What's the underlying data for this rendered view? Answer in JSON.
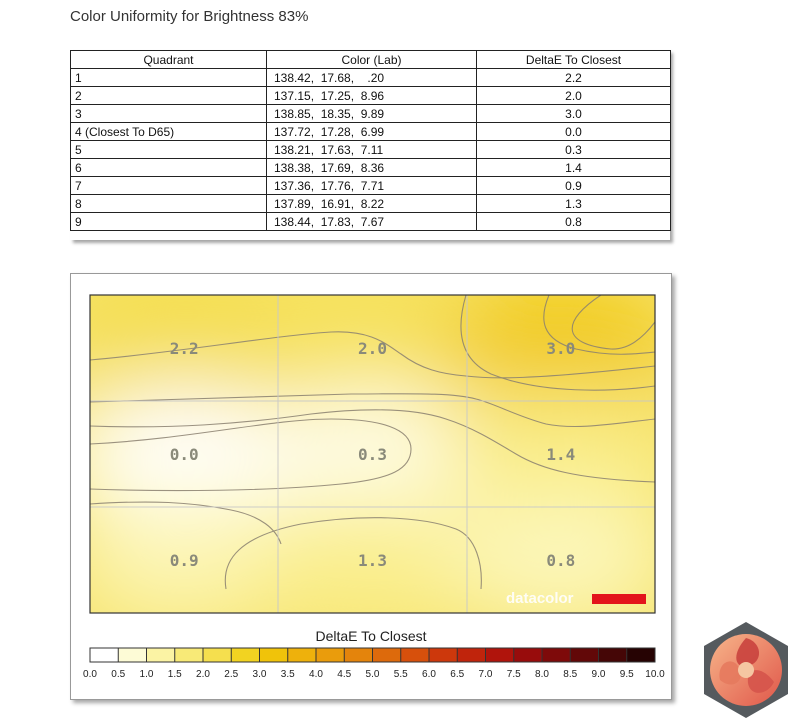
{
  "page_title": "Color Uniformity for Brightness 83%",
  "table": {
    "headers": [
      "Quadrant",
      "Color (Lab)",
      "DeltaE To Closest"
    ],
    "rows": [
      {
        "quadrant": "1",
        "lab": "138.42,  17.68,    .20",
        "deltae": "2.2"
      },
      {
        "quadrant": "2",
        "lab": "137.15,  17.25,  8.96",
        "deltae": "2.0"
      },
      {
        "quadrant": "3",
        "lab": "138.85,  18.35,  9.89",
        "deltae": "3.0"
      },
      {
        "quadrant": "4 (Closest To D65)",
        "lab": "137.72,  17.28,  6.99",
        "deltae": "0.0"
      },
      {
        "quadrant": "5",
        "lab": "138.21,  17.63,  7.11",
        "deltae": "0.3"
      },
      {
        "quadrant": "6",
        "lab": "138.38,  17.69,  8.36",
        "deltae": "1.4"
      },
      {
        "quadrant": "7",
        "lab": "137.36,  17.76,  7.71",
        "deltae": "0.9"
      },
      {
        "quadrant": "8",
        "lab": "137.89,  16.91,  8.22",
        "deltae": "1.3"
      },
      {
        "quadrant": "9",
        "lab": "138.44,  17.83,  7.67",
        "deltae": "0.8"
      }
    ]
  },
  "chart_data": {
    "type": "heatmap",
    "title": "DeltaE To Closest",
    "grid_rows": 3,
    "grid_cols": 3,
    "cells": [
      [
        2.2,
        2.0,
        3.0
      ],
      [
        0.0,
        0.3,
        1.4
      ],
      [
        0.9,
        1.3,
        0.8
      ]
    ],
    "cell_labels": [
      [
        "2.2",
        "2.0",
        "3.0"
      ],
      [
        "0.0",
        "0.3",
        "1.4"
      ],
      [
        "0.9",
        "1.3",
        "0.8"
      ]
    ],
    "colorbar": {
      "min": 0.0,
      "max": 10.0,
      "ticks": [
        "0.0",
        "0.5",
        "1.0",
        "1.5",
        "2.0",
        "2.5",
        "3.0",
        "3.5",
        "4.0",
        "4.5",
        "5.0",
        "5.5",
        "6.0",
        "6.5",
        "7.0",
        "7.5",
        "8.0",
        "8.5",
        "9.0",
        "9.5",
        "10.0"
      ],
      "colors": [
        "#ffffff",
        "#fdfbd6",
        "#fbf3a4",
        "#f8ea77",
        "#f5df4e",
        "#f2d321",
        "#f0c30a",
        "#eeb10c",
        "#ea9c0c",
        "#e4840c",
        "#dd6a0c",
        "#d7500c",
        "#cd380c",
        "#c0240c",
        "#b0140c",
        "#980c0c",
        "#7e0a0a",
        "#620808",
        "#450606",
        "#260303"
      ]
    },
    "watermark": "datacolor",
    "brand_color": "#e3141b"
  }
}
